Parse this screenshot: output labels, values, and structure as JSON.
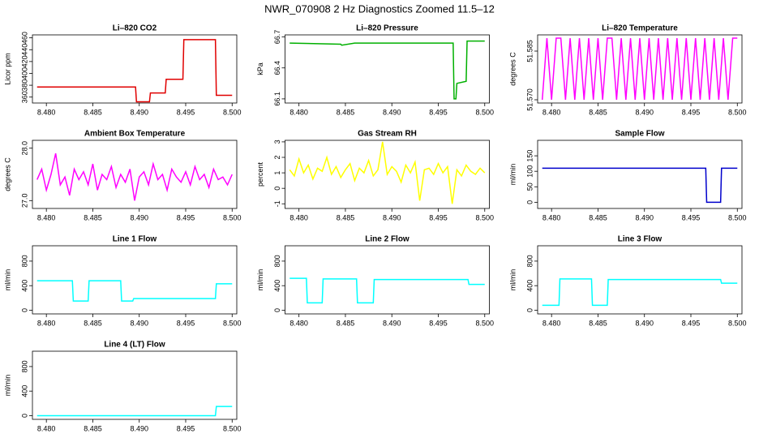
{
  "title": "NWR_070908  2 Hz Diagnostics Zoomed 11.5–12",
  "chart_data": [
    {
      "type": "line",
      "title": "Li–820 CO2",
      "ylabel": "Licor ppm",
      "color": "#e00000",
      "x": [
        8.479,
        8.4896,
        8.4897,
        8.4911,
        8.4912,
        8.4928,
        8.4929,
        8.4947,
        8.4948,
        8.4982,
        8.4983,
        8.5
      ],
      "values": [
        377,
        377,
        352,
        352,
        367,
        367,
        390,
        390,
        457,
        457,
        363,
        363
      ],
      "xlim": [
        8.4785,
        8.5005
      ],
      "ylim": [
        350,
        465
      ],
      "yticks": [
        360,
        380,
        400,
        420,
        440,
        460
      ],
      "xticks": [
        {
          "value": 8.48,
          "label": "8.480"
        },
        {
          "value": 8.485,
          "label": "8.485"
        },
        {
          "value": 8.49,
          "label": "8.490"
        },
        {
          "value": 8.495,
          "label": "8.495"
        },
        {
          "value": 8.5,
          "label": "8.500"
        }
      ]
    },
    {
      "type": "line",
      "title": "Li–820 Pressure",
      "ylabel": "kPa",
      "color": "#00b000",
      "x": [
        8.479,
        8.4845,
        8.4846,
        8.486,
        8.4966,
        8.4967,
        8.4969,
        8.497,
        8.498,
        8.4981,
        8.5
      ],
      "values": [
        66.64,
        66.63,
        66.62,
        66.64,
        66.64,
        66.1,
        66.1,
        66.25,
        66.27,
        66.66,
        66.66
      ],
      "xlim": [
        8.4785,
        8.5005
      ],
      "ylim": [
        66.06,
        66.72
      ],
      "yticks": [
        66.1,
        66.4,
        66.7
      ],
      "xticks": [
        {
          "value": 8.48,
          "label": "8.480"
        },
        {
          "value": 8.485,
          "label": "8.485"
        },
        {
          "value": 8.49,
          "label": "8.490"
        },
        {
          "value": 8.495,
          "label": "8.495"
        },
        {
          "value": 8.5,
          "label": "8.500"
        }
      ]
    },
    {
      "type": "line",
      "title": "Li–820 Temperature",
      "ylabel": "degrees C",
      "color": "#ff00ff",
      "x": [
        8.479,
        8.4795,
        8.48,
        8.4805,
        8.481,
        8.4815,
        8.482,
        8.4825,
        8.483,
        8.4835,
        8.484,
        8.4845,
        8.485,
        8.4855,
        8.486,
        8.4865,
        8.487,
        8.4875,
        8.488,
        8.4885,
        8.489,
        8.4895,
        8.49,
        8.4905,
        8.491,
        8.4915,
        8.492,
        8.4925,
        8.493,
        8.4935,
        8.494,
        8.4945,
        8.495,
        8.4955,
        8.496,
        8.4965,
        8.497,
        8.4975,
        8.498,
        8.4985,
        8.499,
        8.4995,
        8.5
      ],
      "values": [
        51.57,
        51.589,
        51.57,
        51.589,
        51.589,
        51.57,
        51.589,
        51.57,
        51.589,
        51.57,
        51.589,
        51.57,
        51.589,
        51.57,
        51.589,
        51.589,
        51.57,
        51.589,
        51.57,
        51.589,
        51.57,
        51.589,
        51.57,
        51.589,
        51.57,
        51.589,
        51.57,
        51.589,
        51.57,
        51.589,
        51.57,
        51.589,
        51.57,
        51.589,
        51.57,
        51.589,
        51.57,
        51.589,
        51.57,
        51.589,
        51.57,
        51.589,
        51.589
      ],
      "xlim": [
        8.4785,
        8.5005
      ],
      "ylim": [
        51.569,
        51.59
      ],
      "yticks": [
        {
          "value": 51.57,
          "label": "51.570"
        },
        51.585
      ],
      "xticks": [
        {
          "value": 8.48,
          "label": "8.480"
        },
        {
          "value": 8.485,
          "label": "8.485"
        },
        {
          "value": 8.49,
          "label": "8.490"
        },
        {
          "value": 8.495,
          "label": "8.495"
        },
        {
          "value": 8.5,
          "label": "8.500"
        }
      ]
    },
    {
      "type": "line",
      "title": "Ambient Box Temperature",
      "ylabel": "degrees C",
      "color": "#ff00ff",
      "x": [
        8.479,
        8.4795,
        8.48,
        8.4805,
        8.481,
        8.4815,
        8.482,
        8.4825,
        8.483,
        8.4835,
        8.484,
        8.4845,
        8.485,
        8.4855,
        8.486,
        8.4865,
        8.487,
        8.4875,
        8.488,
        8.4885,
        8.489,
        8.4895,
        8.49,
        8.4905,
        8.491,
        8.4915,
        8.492,
        8.4925,
        8.493,
        8.4935,
        8.494,
        8.4945,
        8.495,
        8.4955,
        8.496,
        8.4965,
        8.497,
        8.4975,
        8.498,
        8.4985,
        8.499,
        8.4995,
        8.5
      ],
      "values": [
        27.4,
        27.6,
        27.2,
        27.5,
        27.9,
        27.3,
        27.45,
        27.1,
        27.6,
        27.4,
        27.55,
        27.3,
        27.7,
        27.2,
        27.5,
        27.4,
        27.65,
        27.25,
        27.5,
        27.35,
        27.6,
        27.0,
        27.45,
        27.55,
        27.3,
        27.7,
        27.4,
        27.5,
        27.2,
        27.6,
        27.45,
        27.35,
        27.55,
        27.3,
        27.65,
        27.4,
        27.5,
        27.25,
        27.6,
        27.4,
        27.45,
        27.3,
        27.5
      ],
      "xlim": [
        8.4785,
        8.5005
      ],
      "ylim": [
        26.85,
        28.15
      ],
      "yticks": [
        {
          "value": 27,
          "label": "27.0"
        },
        {
          "value": 28,
          "label": "28.0"
        }
      ],
      "xticks": [
        {
          "value": 8.48,
          "label": "8.480"
        },
        {
          "value": 8.485,
          "label": "8.485"
        },
        {
          "value": 8.49,
          "label": "8.490"
        },
        {
          "value": 8.495,
          "label": "8.495"
        },
        {
          "value": 8.5,
          "label": "8.500"
        }
      ]
    },
    {
      "type": "line",
      "title": "Gas Stream RH",
      "ylabel": "percent",
      "color": "#ffff00",
      "x": [
        8.479,
        8.4795,
        8.48,
        8.4805,
        8.481,
        8.4815,
        8.482,
        8.4825,
        8.483,
        8.4835,
        8.484,
        8.4845,
        8.485,
        8.4855,
        8.486,
        8.4865,
        8.487,
        8.4875,
        8.488,
        8.4885,
        8.489,
        8.4895,
        8.49,
        8.4905,
        8.491,
        8.4915,
        8.492,
        8.4925,
        8.493,
        8.4935,
        8.494,
        8.4945,
        8.495,
        8.4955,
        8.496,
        8.4965,
        8.497,
        8.4975,
        8.498,
        8.4985,
        8.499,
        8.4995,
        8.5
      ],
      "values": [
        1.2,
        0.8,
        1.9,
        1.0,
        1.5,
        0.6,
        1.3,
        1.1,
        2.0,
        0.9,
        1.4,
        0.7,
        1.2,
        1.6,
        0.5,
        1.3,
        1.0,
        1.8,
        0.8,
        1.2,
        3.0,
        0.9,
        1.4,
        1.1,
        0.4,
        1.5,
        1.0,
        1.7,
        -0.8,
        1.2,
        1.3,
        0.9,
        1.6,
        1.0,
        1.4,
        -1.0,
        1.2,
        0.8,
        1.5,
        1.1,
        0.9,
        1.3,
        1.0
      ],
      "xlim": [
        8.4785,
        8.5005
      ],
      "ylim": [
        -1.3,
        3.1
      ],
      "yticks": [
        -1,
        0,
        1,
        2,
        3
      ],
      "xticks": [
        {
          "value": 8.48,
          "label": "8.480"
        },
        {
          "value": 8.485,
          "label": "8.485"
        },
        {
          "value": 8.49,
          "label": "8.490"
        },
        {
          "value": 8.495,
          "label": "8.495"
        },
        {
          "value": 8.5,
          "label": "8.500"
        }
      ]
    },
    {
      "type": "line",
      "title": "Sample Flow",
      "ylabel": "ml/min",
      "color": "#0000cc",
      "x": [
        8.479,
        8.4966,
        8.4967,
        8.4982,
        8.4983,
        8.5
      ],
      "values": [
        110,
        110,
        0,
        0,
        110,
        110
      ],
      "xlim": [
        8.4785,
        8.5005
      ],
      "ylim": [
        -20,
        200
      ],
      "yticks": [
        0,
        50,
        100,
        150
      ],
      "xticks": [
        {
          "value": 8.48,
          "label": "8.480"
        },
        {
          "value": 8.485,
          "label": "8.485"
        },
        {
          "value": 8.49,
          "label": "8.490"
        },
        {
          "value": 8.495,
          "label": "8.495"
        },
        {
          "value": 8.5,
          "label": "8.500"
        }
      ]
    },
    {
      "type": "line",
      "title": "Line 1 Flow",
      "ylabel": "ml/min",
      "color": "#00ffff",
      "x": [
        8.479,
        8.4828,
        8.4829,
        8.4845,
        8.4846,
        8.488,
        8.4881,
        8.4893,
        8.4894,
        8.4982,
        8.4983,
        8.5
      ],
      "values": [
        480,
        480,
        150,
        150,
        480,
        480,
        150,
        150,
        190,
        190,
        430,
        430
      ],
      "xlim": [
        8.4785,
        8.5005
      ],
      "ylim": [
        -60,
        1050
      ],
      "yticks": [
        0,
        400,
        800
      ],
      "xticks": [
        {
          "value": 8.48,
          "label": "8.480"
        },
        {
          "value": 8.485,
          "label": "8.485"
        },
        {
          "value": 8.49,
          "label": "8.490"
        },
        {
          "value": 8.495,
          "label": "8.495"
        },
        {
          "value": 8.5,
          "label": "8.500"
        }
      ]
    },
    {
      "type": "line",
      "title": "Line 2 Flow",
      "ylabel": "ml/min",
      "color": "#00ffff",
      "x": [
        8.479,
        8.4808,
        8.4809,
        8.4825,
        8.4826,
        8.4862,
        8.4863,
        8.488,
        8.4881,
        8.4982,
        8.4983,
        8.5
      ],
      "values": [
        520,
        520,
        120,
        120,
        510,
        510,
        120,
        120,
        500,
        500,
        420,
        420
      ],
      "xlim": [
        8.4785,
        8.5005
      ],
      "ylim": [
        -60,
        1050
      ],
      "yticks": [
        0,
        400,
        800
      ],
      "xticks": [
        {
          "value": 8.48,
          "label": "8.480"
        },
        {
          "value": 8.485,
          "label": "8.485"
        },
        {
          "value": 8.49,
          "label": "8.490"
        },
        {
          "value": 8.495,
          "label": "8.495"
        },
        {
          "value": 8.5,
          "label": "8.500"
        }
      ]
    },
    {
      "type": "line",
      "title": "Line 3 Flow",
      "ylabel": "ml/min",
      "color": "#00ffff",
      "x": [
        8.479,
        8.4808,
        8.4809,
        8.4843,
        8.4844,
        8.486,
        8.4861,
        8.4982,
        8.4983,
        8.5
      ],
      "values": [
        80,
        80,
        510,
        510,
        80,
        80,
        500,
        500,
        440,
        440
      ],
      "xlim": [
        8.4785,
        8.5005
      ],
      "ylim": [
        -60,
        1050
      ],
      "yticks": [
        0,
        400,
        800
      ],
      "xticks": [
        {
          "value": 8.48,
          "label": "8.480"
        },
        {
          "value": 8.485,
          "label": "8.485"
        },
        {
          "value": 8.49,
          "label": "8.490"
        },
        {
          "value": 8.495,
          "label": "8.495"
        },
        {
          "value": 8.5,
          "label": "8.500"
        }
      ]
    },
    {
      "type": "line",
      "title": "Line 4 (LT) Flow",
      "ylabel": "ml/min",
      "color": "#00ffff",
      "x": [
        8.479,
        8.4982,
        8.4983,
        8.5
      ],
      "values": [
        0,
        0,
        150,
        150
      ],
      "xlim": [
        8.4785,
        8.5005
      ],
      "ylim": [
        -60,
        1050
      ],
      "yticks": [
        0,
        400,
        800
      ],
      "xticks": [
        {
          "value": 8.48,
          "label": "8.480"
        },
        {
          "value": 8.485,
          "label": "8.485"
        },
        {
          "value": 8.49,
          "label": "8.490"
        },
        {
          "value": 8.495,
          "label": "8.495"
        },
        {
          "value": 8.5,
          "label": "8.500"
        }
      ]
    }
  ]
}
